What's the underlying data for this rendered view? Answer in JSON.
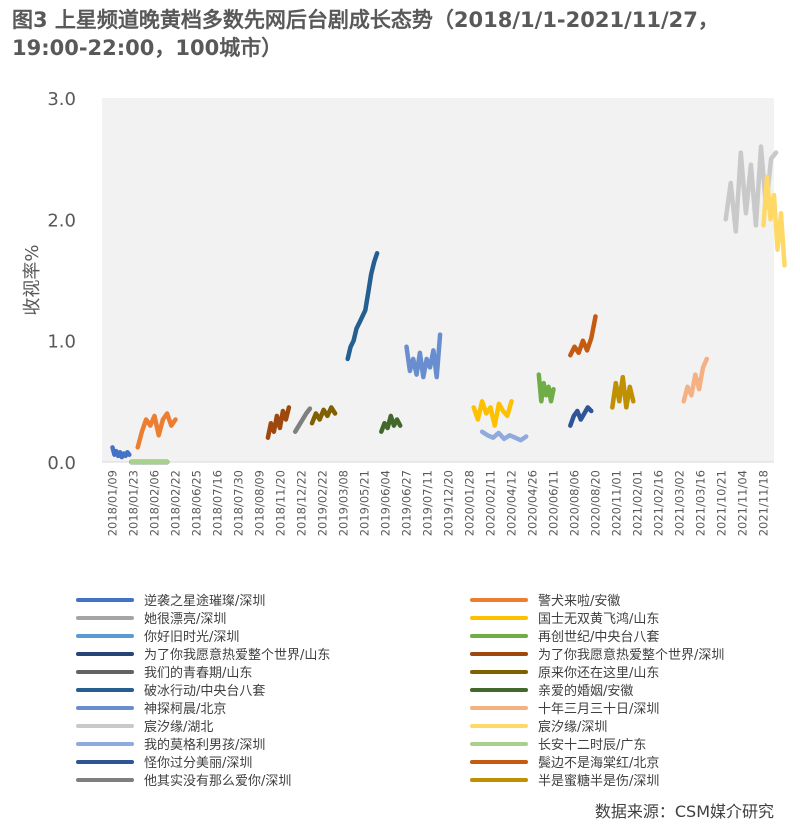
{
  "title": "图3 上星频道晚黄档多数先网后台剧成长态势（2018/1/1-2021/11/27，19:00-22:00，100城市）",
  "source": "数据来源：CSM媒介研究",
  "chart_data": {
    "type": "line",
    "ylabel": "收视率%",
    "xlabel": "",
    "ylim": [
      0,
      3.0
    ],
    "yticks": [
      "0.0",
      "1.0",
      "2.0",
      "3.0"
    ],
    "grid": false,
    "legend_position": "bottom",
    "x_tick_labels": [
      "2018/01/09",
      "2018/01/23",
      "2018/02/06",
      "2018/02/22",
      "2018/06/25",
      "2018/07/16",
      "2018/07/30",
      "2018/08/09",
      "2018/11/20",
      "2018/12/22",
      "2019/02/22",
      "2019/03/08",
      "2019/05/21",
      "2019/06/04",
      "2019/06/27",
      "2019/07/11",
      "2019/12/20",
      "2020/01/28",
      "2020/02/11",
      "2020/04/12",
      "2020/04/26",
      "2020/06/11",
      "2020/08/06",
      "2020/08/20",
      "2020/11/01",
      "2021/02/01",
      "2021/02/16",
      "2021/03/02",
      "2021/03/16",
      "2021/10/21",
      "2021/11/04",
      "2021/11/18"
    ],
    "series": [
      {
        "name": "逆袭之星途璀璨/深圳",
        "color": "#4472c4",
        "x0": 0,
        "x1": 0.8,
        "values": [
          0.12,
          0.06,
          0.09,
          0.05,
          0.08,
          0.04,
          0.07,
          0.05,
          0.08,
          0.06
        ]
      },
      {
        "name": "她很漂亮/深圳",
        "color": "#a5a5a5",
        "x0": 0.9,
        "x1": 2.6,
        "values": [
          0.0,
          0.0,
          0.0,
          0.0,
          0.0,
          0.0,
          0.0,
          0.0
        ]
      },
      {
        "name": "你好旧时光/深圳",
        "color": "#5b9bd5",
        "x0": 0.9,
        "x1": 2.6,
        "values": [
          0.0,
          0.0,
          0.0,
          0.0,
          0.0,
          0.0,
          0.0,
          0.0
        ]
      },
      {
        "name": "为了你我愿意热爱整个世界/山东",
        "color": "#264478",
        "x0": 0.9,
        "x1": 2.6,
        "values": [
          0.0,
          0.0,
          0.0,
          0.0,
          0.0,
          0.0,
          0.0,
          0.0
        ]
      },
      {
        "name": "我们的青春期/山东",
        "color": "#636363",
        "x0": 0.9,
        "x1": 2.6,
        "values": [
          0.0,
          0.0,
          0.0,
          0.0,
          0.0,
          0.0,
          0.0,
          0.0
        ]
      },
      {
        "name": "破冰行动/中央台八套",
        "color": "#255e91",
        "x0": 11.2,
        "x1": 12.6,
        "values": [
          0.85,
          0.95,
          1.0,
          1.1,
          1.15,
          1.2,
          1.25,
          1.4,
          1.55,
          1.65,
          1.72
        ]
      },
      {
        "name": "神探柯晨/北京",
        "color": "#698ed0",
        "x0": 14.0,
        "x1": 15.6,
        "values": [
          0.95,
          0.75,
          0.85,
          0.72,
          0.9,
          0.7,
          0.85,
          0.78,
          0.92,
          0.7,
          1.05
        ]
      },
      {
        "name": "宸汐缘/湖北",
        "color": "#c9c9c9",
        "x0": 29.2,
        "x1": 31.6,
        "values": [
          2.0,
          2.3,
          1.9,
          2.55,
          2.05,
          2.45,
          1.95,
          2.6,
          2.1,
          2.5,
          2.55
        ]
      },
      {
        "name": "我的莫格利男孩/深圳",
        "color": "#8faadc",
        "x0": 17.6,
        "x1": 19.7,
        "values": [
          0.25,
          0.22,
          0.2,
          0.24,
          0.19,
          0.22,
          0.2,
          0.18,
          0.21
        ]
      },
      {
        "name": "怪你过分美丽/深圳",
        "color": "#2f5597",
        "x0": 21.8,
        "x1": 22.8,
        "values": [
          0.3,
          0.38,
          0.42,
          0.35,
          0.4,
          0.45,
          0.42
        ]
      },
      {
        "name": "他其实没有那么爱你/深圳",
        "color": "#7f7f7f",
        "x0": 8.7,
        "x1": 9.4,
        "values": [
          0.25,
          0.3,
          0.35,
          0.4,
          0.44
        ]
      },
      {
        "name": "警犬来啦/安徽",
        "color": "#ed7d31",
        "x0": 1.2,
        "x1": 3.0,
        "values": [
          0.12,
          0.25,
          0.35,
          0.3,
          0.38,
          0.22,
          0.35,
          0.4,
          0.3,
          0.35
        ]
      },
      {
        "name": "国士无双黄飞鸿/山东",
        "color": "#ffc000",
        "x0": 17.2,
        "x1": 19.0,
        "values": [
          0.45,
          0.35,
          0.5,
          0.4,
          0.45,
          0.3,
          0.48,
          0.42,
          0.38,
          0.5
        ]
      },
      {
        "name": "再创世纪/中央台八套",
        "color": "#70ad47",
        "x0": 20.3,
        "x1": 21.0,
        "values": [
          0.72,
          0.5,
          0.65,
          0.55,
          0.62,
          0.5,
          0.6
        ]
      },
      {
        "name": "为了你我愿意热爱整个世界/深圳",
        "color": "#9e480e",
        "x0": 7.4,
        "x1": 8.4,
        "values": [
          0.2,
          0.32,
          0.25,
          0.38,
          0.28,
          0.42,
          0.35,
          0.45
        ]
      },
      {
        "name": "原来你还在这里/山东",
        "color": "#806000",
        "x0": 9.5,
        "x1": 10.6,
        "values": [
          0.32,
          0.4,
          0.35,
          0.43,
          0.38,
          0.45,
          0.4
        ]
      },
      {
        "name": "亲爱的婚姻/安徽",
        "color": "#43682b",
        "x0": 12.8,
        "x1": 13.7,
        "values": [
          0.25,
          0.32,
          0.28,
          0.38,
          0.3,
          0.35,
          0.3
        ]
      },
      {
        "name": "十年三月三十日/深圳",
        "color": "#f4b183",
        "x0": 27.2,
        "x1": 28.3,
        "values": [
          0.5,
          0.62,
          0.55,
          0.72,
          0.6,
          0.78,
          0.85
        ]
      },
      {
        "name": "宸汐缘/深圳",
        "color": "#ffd966",
        "x0": 31.0,
        "x1": 32.0,
        "values": [
          1.95,
          2.35,
          2.0,
          2.2,
          1.75,
          2.05,
          1.62
        ]
      },
      {
        "name": "长安十二时辰/广东",
        "color": "#a9d18e",
        "x0": 0.9,
        "x1": 2.6,
        "values": [
          0.0,
          0.0,
          0.0,
          0.0,
          0.0,
          0.0,
          0.0,
          0.0
        ]
      },
      {
        "name": "鬓边不是海棠红/北京",
        "color": "#c55a11",
        "x0": 21.8,
        "x1": 23.0,
        "values": [
          0.88,
          0.95,
          0.9,
          1.0,
          0.92,
          1.02,
          1.2
        ]
      },
      {
        "name": "半是蜜糖半是伤/深圳",
        "color": "#bf9000",
        "x0": 23.8,
        "x1": 24.8,
        "values": [
          0.45,
          0.65,
          0.5,
          0.7,
          0.45,
          0.62,
          0.5
        ]
      }
    ]
  },
  "legend": {
    "left": [
      {
        "label": "逆袭之星途璀璨/深圳",
        "color": "#4472c4"
      },
      {
        "label": "她很漂亮/深圳",
        "color": "#a5a5a5"
      },
      {
        "label": "你好旧时光/深圳",
        "color": "#5b9bd5"
      },
      {
        "label": "为了你我愿意热爱整个世界/山东",
        "color": "#264478"
      },
      {
        "label": "我们的青春期/山东",
        "color": "#636363"
      },
      {
        "label": "破冰行动/中央台八套",
        "color": "#255e91"
      },
      {
        "label": "神探柯晨/北京",
        "color": "#698ed0"
      },
      {
        "label": "宸汐缘/湖北",
        "color": "#c9c9c9"
      },
      {
        "label": "我的莫格利男孩/深圳",
        "color": "#8faadc"
      },
      {
        "label": "怪你过分美丽/深圳",
        "color": "#2f5597"
      },
      {
        "label": "他其实没有那么爱你/深圳",
        "color": "#7f7f7f"
      }
    ],
    "right": [
      {
        "label": "警犬来啦/安徽",
        "color": "#ed7d31"
      },
      {
        "label": "国士无双黄飞鸿/山东",
        "color": "#ffc000"
      },
      {
        "label": "再创世纪/中央台八套",
        "color": "#70ad47"
      },
      {
        "label": "为了你我愿意热爱整个世界/深圳",
        "color": "#9e480e"
      },
      {
        "label": "原来你还在这里/山东",
        "color": "#806000"
      },
      {
        "label": "亲爱的婚姻/安徽",
        "color": "#43682b"
      },
      {
        "label": "十年三月三十日/深圳",
        "color": "#f4b183"
      },
      {
        "label": "宸汐缘/深圳",
        "color": "#ffd966"
      },
      {
        "label": "长安十二时辰/广东",
        "color": "#a9d18e"
      },
      {
        "label": "鬓边不是海棠红/北京",
        "color": "#c55a11"
      },
      {
        "label": "半是蜜糖半是伤/深圳",
        "color": "#bf9000"
      }
    ]
  }
}
